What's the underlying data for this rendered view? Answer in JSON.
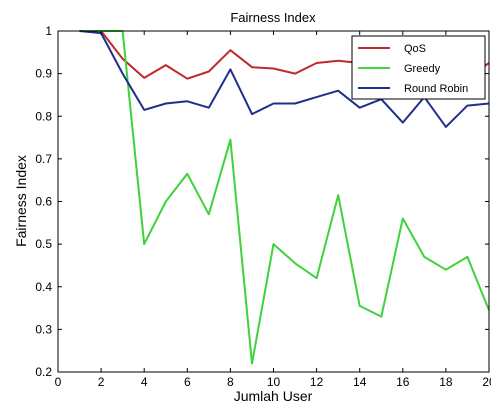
{
  "chart_data": {
    "type": "line",
    "title": "Fairness Index",
    "xlabel": "Jumlah User",
    "ylabel": "Fairness Index",
    "xlim": [
      0,
      20
    ],
    "ylim": [
      0.2,
      1
    ],
    "xticks": [
      0,
      2,
      4,
      6,
      8,
      10,
      12,
      14,
      16,
      18,
      20
    ],
    "yticks": [
      0.2,
      0.3,
      0.4,
      0.5,
      0.6,
      0.7,
      0.8,
      0.9,
      1
    ],
    "grid": false,
    "legend_position": "top-right",
    "x": [
      1,
      2,
      3,
      4,
      5,
      6,
      7,
      8,
      9,
      10,
      11,
      12,
      13,
      14,
      15,
      16,
      17,
      18,
      19,
      20
    ],
    "series": [
      {
        "name": "QoS",
        "color": "#c0282d",
        "values": [
          1,
          1,
          0.935,
          0.89,
          0.92,
          0.888,
          0.905,
          0.955,
          0.915,
          0.912,
          0.9,
          0.925,
          0.93,
          0.925,
          0.92,
          0.905,
          0.9,
          0.91,
          0.89,
          0.925
        ]
      },
      {
        "name": "Greedy",
        "color": "#3fd23a",
        "values": [
          1,
          1,
          1,
          0.5,
          0.6,
          0.665,
          0.57,
          0.745,
          0.22,
          0.5,
          0.455,
          0.42,
          0.615,
          0.355,
          0.33,
          0.56,
          0.47,
          0.44,
          0.47,
          0.345
        ]
      },
      {
        "name": "Round Robin",
        "color": "#1f2f8c",
        "values": [
          1,
          0.995,
          0.9,
          0.815,
          0.83,
          0.835,
          0.82,
          0.91,
          0.805,
          0.83,
          0.83,
          0.845,
          0.86,
          0.82,
          0.84,
          0.785,
          0.845,
          0.775,
          0.825,
          0.83
        ]
      }
    ]
  }
}
